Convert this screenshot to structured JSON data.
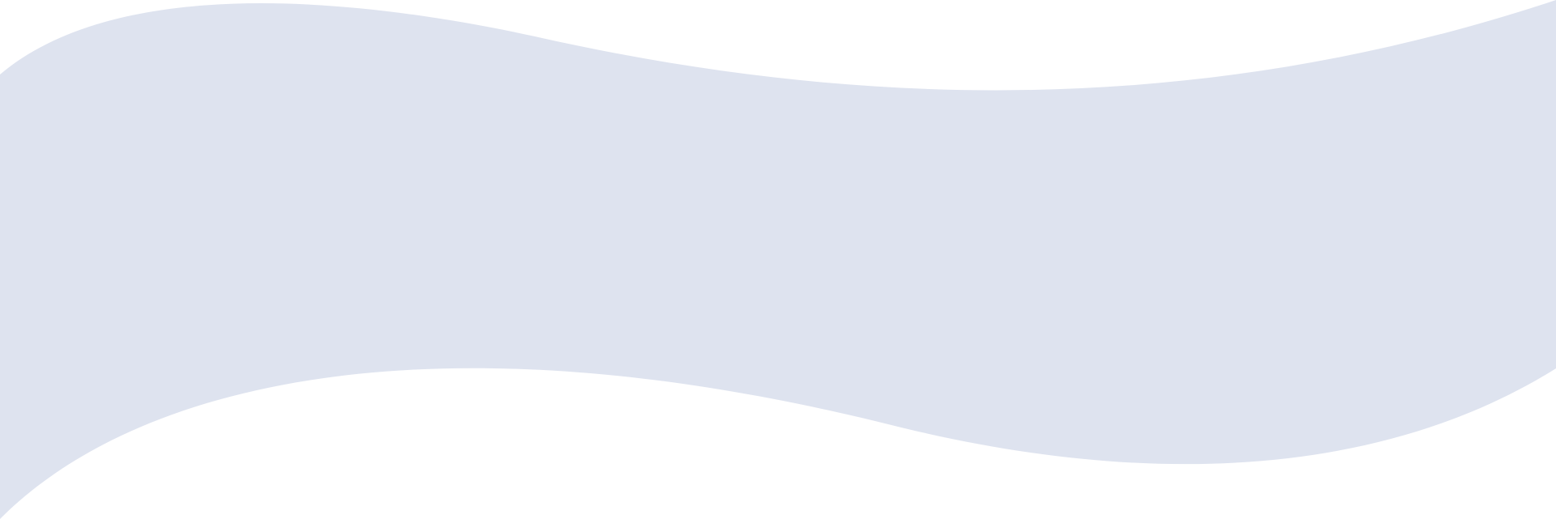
{
  "colors": {
    "background": "#ffffff",
    "wave_fill": "#dee3ef"
  },
  "shapes": {
    "wave_band": {
      "description_name": "decorative-wave-band"
    }
  }
}
